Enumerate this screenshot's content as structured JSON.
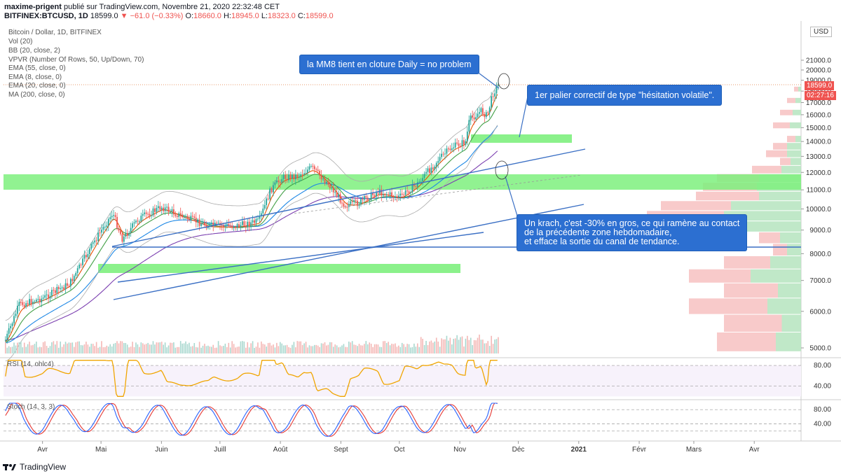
{
  "header": {
    "author": "maxime-prigent",
    "published": "publié sur TradingView.com, Novembre 21, 2020 22:32:48 CET",
    "symbol": "BITFINEX:BTCUSD, 1D",
    "last": "18599.0",
    "change": "−61.0 (−0.33%)",
    "o_label": "O:",
    "o": "18660.0",
    "h_label": "H:",
    "h": "18945.0",
    "l_label": "L:",
    "l": "18323.0",
    "c_label": "C:",
    "c": "18599.0"
  },
  "indicators": [
    "Bitcoin / Dollar, 1D, BITFINEX",
    "Vol (20)",
    "BB (20, close, 2)",
    "VPVR (Number Of Rows, 50, Up/Down, 70)",
    "EMA (55, close, 0)",
    "EMA (8, close, 0)",
    "EMA (20, close, 0)",
    "MA (200, close, 0)"
  ],
  "notes": {
    "mm8": "la MM8 tient en cloture Daily = no problem",
    "palier": "1er palier correctif de type \"hésitation volatile\".",
    "krach_1": "Un krach, c'est -30% en gros, ce qui ramène au contact",
    "krach_2": "de la précédente zone hebdomadaire,",
    "krach_3": "et efface la sortie du canal de tendance."
  },
  "price_tag": {
    "value": "18599.0",
    "timer": "02:27:16"
  },
  "currency": "USD",
  "rsi_label": "RSI (14, ohlc4)",
  "stoch_label": "Stoch (14, 3, 3)",
  "logo": "TradingView",
  "colors": {
    "up": "#26a69a",
    "down": "#ef5350",
    "zone": "#7ef07e",
    "channel": "#3a6fc4",
    "note": "#2c6fd1",
    "rsi": "#f0a500",
    "stoch_k": "#2962ff",
    "stoch_d": "#e53935",
    "ema8": "#e65100",
    "ema20": "#43a047",
    "ema55": "#1e88e5",
    "ma200": "#7b3fb0"
  },
  "chart_data": {
    "type": "candlestick",
    "title": "Bitcoin / Dollar, 1D, BITFINEX",
    "y_axis": {
      "ticks": [
        5000,
        6000,
        7000,
        8000,
        9000,
        10000,
        11000,
        12000,
        13000,
        14000,
        15000,
        16000,
        17000,
        18000,
        19000,
        20000,
        21000
      ],
      "range": [
        4500,
        21900
      ],
      "side": "right"
    },
    "x_axis": {
      "ticks": [
        "Avr",
        "Mai",
        "Juin",
        "Juill",
        "Août",
        "Sept",
        "Oct",
        "Nov",
        "Déc",
        "2021",
        "Févr",
        "Mars",
        "Avr"
      ]
    },
    "close_path": [
      [
        "2020-03-13",
        5200
      ],
      [
        "2020-03-20",
        6200
      ],
      [
        "2020-04-01",
        6400
      ],
      [
        "2020-04-15",
        6900
      ],
      [
        "2020-04-29",
        8700
      ],
      [
        "2020-05-07",
        9800
      ],
      [
        "2020-05-12",
        8600
      ],
      [
        "2020-05-20",
        9500
      ],
      [
        "2020-06-01",
        10100
      ],
      [
        "2020-06-10",
        9700
      ],
      [
        "2020-06-25",
        9200
      ],
      [
        "2020-07-10",
        9200
      ],
      [
        "2020-07-21",
        9400
      ],
      [
        "2020-07-27",
        11000
      ],
      [
        "2020-08-02",
        11700
      ],
      [
        "2020-08-10",
        11800
      ],
      [
        "2020-08-17",
        12300
      ],
      [
        "2020-08-25",
        11400
      ],
      [
        "2020-09-03",
        10200
      ],
      [
        "2020-09-10",
        10300
      ],
      [
        "2020-09-20",
        10900
      ],
      [
        "2020-10-01",
        10600
      ],
      [
        "2020-10-10",
        11300
      ],
      [
        "2020-10-21",
        12800
      ],
      [
        "2020-10-28",
        13600
      ],
      [
        "2020-11-04",
        14000
      ],
      [
        "2020-11-06",
        15600
      ],
      [
        "2020-11-12",
        16300
      ],
      [
        "2020-11-15",
        15900
      ],
      [
        "2020-11-18",
        17800
      ],
      [
        "2020-11-21",
        18599
      ]
    ],
    "last": {
      "open": 18660.0,
      "high": 18945.0,
      "low": 18323.0,
      "close": 18599.0
    },
    "rsi": {
      "label": "RSI (14, ohlc4)",
      "ticks": [
        40,
        80
      ]
    },
    "stoch": {
      "label": "Stoch (14, 3, 3)",
      "ticks": [
        40,
        80
      ]
    },
    "annotations": [
      "la MM8 tient en cloture Daily = no problem",
      "1er palier correctif de type \"hésitation volatile\".",
      "Un krach, c'est -30% en gros, ce qui ramène au contact de la précédente zone hebdomadaire, et efface la sortie du canal de tendance."
    ]
  }
}
